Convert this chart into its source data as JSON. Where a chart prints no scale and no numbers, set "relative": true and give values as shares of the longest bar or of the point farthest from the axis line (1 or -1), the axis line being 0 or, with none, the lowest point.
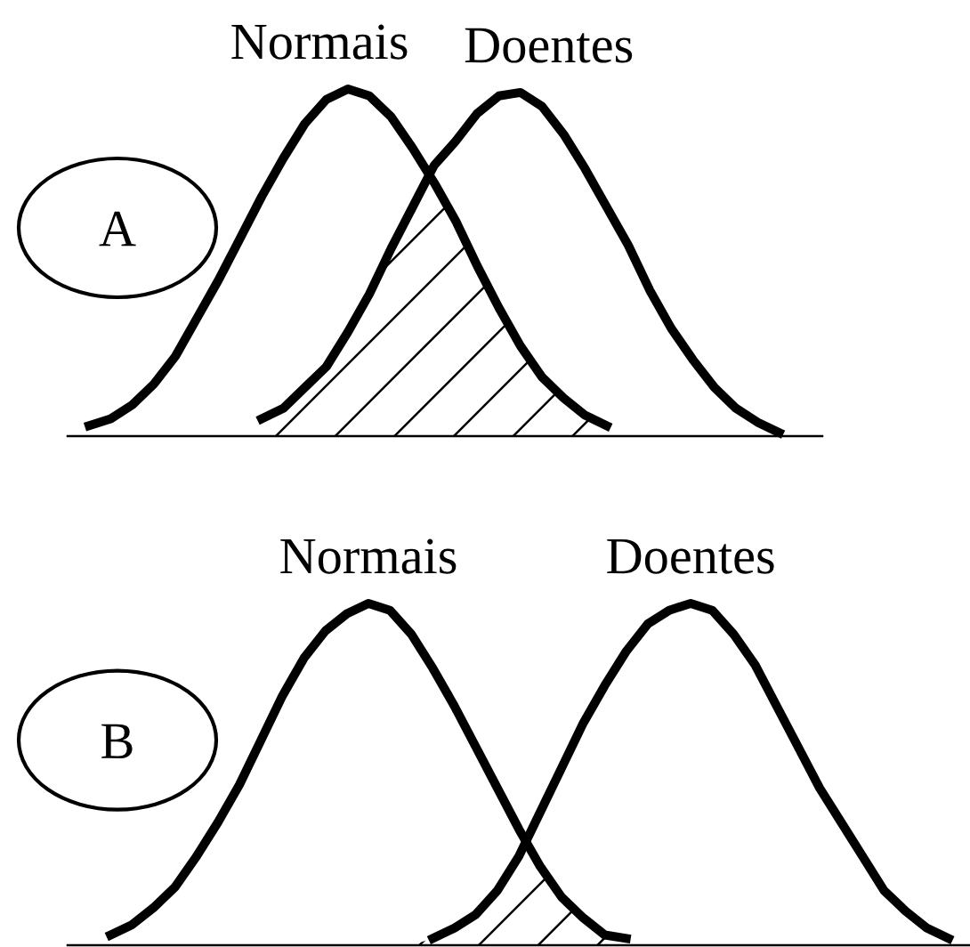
{
  "chart_data": [
    {
      "type": "line",
      "title": "A",
      "relative": true,
      "categories": [
        null,
        null,
        null,
        null,
        null,
        null,
        null,
        null,
        null,
        null,
        null,
        null,
        null,
        null,
        null,
        null,
        null,
        null,
        null,
        null,
        null,
        null,
        null,
        null,
        null,
        null,
        null,
        null,
        null,
        null,
        null,
        null,
        null,
        null,
        null,
        null
      ],
      "series": [
        {
          "type": "area",
          "color": "#000000",
          "values": [
            null,
            null,
            null,
            null,
            null,
            null,
            null,
            null,
            0,
            0.05,
            0.08,
            0.14,
            0.2,
            0.3,
            0.41,
            0.54,
            0.66,
            0.73,
            0.62,
            0.49,
            0.37,
            0.26,
            0.17,
            0.11,
            0.06,
            0.03,
            0,
            null,
            null,
            null,
            null,
            null,
            null,
            null,
            null,
            null
          ]
        },
        {
          "name": "Normais",
          "color": "#000000",
          "values": [
            null,
            0.03,
            0.05,
            0.09,
            0.15,
            0.23,
            0.34,
            0.45,
            0.57,
            0.69,
            0.8,
            0.9,
            0.97,
            1.0,
            0.98,
            0.92,
            0.83,
            0.73,
            0.62,
            0.49,
            0.37,
            0.26,
            0.17,
            0.11,
            0.06,
            0.03,
            null,
            null,
            null,
            null,
            null,
            null,
            null,
            null,
            null,
            null
          ]
        },
        {
          "name": "Doentes",
          "color": "#000000",
          "values": [
            null,
            null,
            null,
            null,
            null,
            null,
            null,
            null,
            null,
            0.05,
            0.08,
            0.14,
            0.2,
            0.3,
            0.41,
            0.54,
            0.66,
            0.78,
            0.85,
            0.93,
            0.98,
            0.99,
            0.95,
            0.87,
            0.77,
            0.66,
            0.55,
            0.42,
            0.31,
            0.22,
            0.14,
            0.08,
            0.04,
            0.01,
            null,
            null
          ]
        }
      ]
    },
    {
      "type": "line",
      "title": "B",
      "relative": true,
      "categories": [
        null,
        null,
        null,
        null,
        null,
        null,
        null,
        null,
        null,
        null,
        null,
        null,
        null,
        null,
        null,
        null,
        null,
        null,
        null,
        null,
        null,
        null,
        null,
        null,
        null,
        null,
        null,
        null,
        null,
        null,
        null,
        null,
        null,
        null,
        null,
        null,
        null,
        null,
        null,
        null,
        null,
        null,
        null
      ],
      "series": [
        {
          "type": "area",
          "color": "#000000",
          "values": [
            null,
            null,
            null,
            null,
            null,
            null,
            null,
            null,
            null,
            null,
            null,
            null,
            null,
            null,
            null,
            null,
            0,
            0.02,
            0.05,
            0.09,
            0.16,
            0.26,
            0.23,
            0.14,
            0.08,
            0.03,
            0.02,
            0,
            null,
            null,
            null,
            null,
            null,
            null,
            null,
            null,
            null,
            null,
            null,
            null,
            null,
            null,
            null
          ]
        },
        {
          "name": "Normais",
          "color": "#000000",
          "values": [
            null,
            null,
            0.03,
            0.06,
            0.11,
            0.17,
            0.26,
            0.36,
            0.47,
            0.6,
            0.73,
            0.84,
            0.92,
            0.97,
            1.0,
            0.98,
            0.91,
            0.81,
            0.7,
            0.58,
            0.46,
            0.34,
            0.23,
            0.14,
            0.08,
            0.03,
            0.02,
            null,
            null,
            null,
            null,
            null,
            null,
            null,
            null,
            null,
            null,
            null,
            null,
            null,
            null,
            null,
            null
          ]
        },
        {
          "name": "Doentes",
          "color": "#000000",
          "values": [
            null,
            null,
            null,
            null,
            null,
            null,
            null,
            null,
            null,
            null,
            null,
            null,
            null,
            null,
            null,
            null,
            null,
            0.02,
            0.05,
            0.09,
            0.16,
            0.26,
            0.39,
            0.52,
            0.65,
            0.76,
            0.86,
            0.94,
            0.98,
            1.0,
            0.98,
            0.91,
            0.82,
            0.7,
            0.58,
            0.46,
            0.36,
            0.26,
            0.16,
            0.1,
            0.05,
            0.02,
            null
          ]
        }
      ]
    }
  ]
}
